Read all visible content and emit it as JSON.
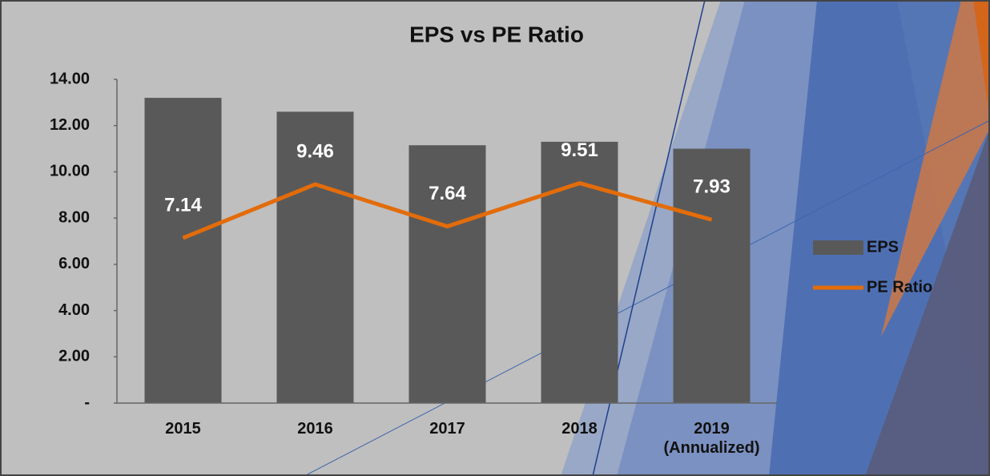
{
  "chart_data": {
    "type": "bar",
    "title": "EPS vs PE Ratio",
    "categories": [
      "2015",
      "2016",
      "2017",
      "2018",
      "2019 (Annualized)"
    ],
    "series": [
      {
        "name": "EPS",
        "type": "bar",
        "color": "#595959",
        "values": [
          13.2,
          12.6,
          11.15,
          11.3,
          11.0
        ]
      },
      {
        "name": "PE Ratio",
        "type": "line",
        "color": "#e36c0a",
        "values": [
          7.14,
          9.46,
          7.64,
          9.51,
          7.93
        ]
      }
    ],
    "ylim": [
      0,
      14
    ],
    "yticks": [
      {
        "value": 0,
        "label": "-"
      },
      {
        "value": 2,
        "label": "2.00"
      },
      {
        "value": 4,
        "label": "4.00"
      },
      {
        "value": 6,
        "label": "6.00"
      },
      {
        "value": 8,
        "label": "8.00"
      },
      {
        "value": 10,
        "label": "10.00"
      },
      {
        "value": 12,
        "label": "12.00"
      },
      {
        "value": 14,
        "label": "14.00"
      }
    ],
    "grid": false,
    "legend": "right"
  }
}
